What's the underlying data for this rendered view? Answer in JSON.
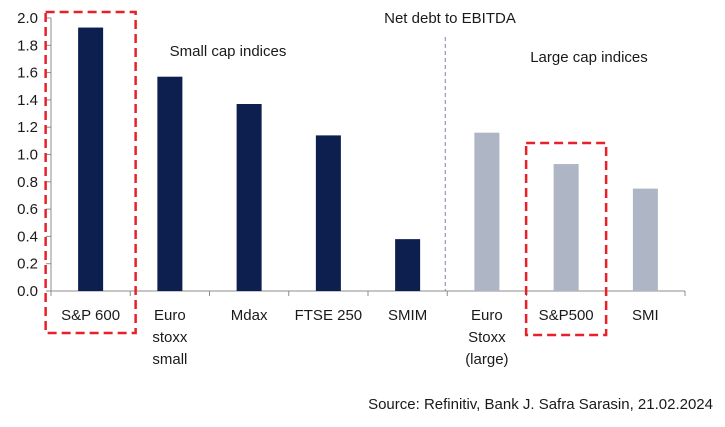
{
  "chart_data": {
    "type": "bar",
    "title": "Net debt to EBITDA",
    "categories": [
      [
        "S&P 600"
      ],
      [
        "Euro",
        "stoxx",
        "small"
      ],
      [
        "Mdax"
      ],
      [
        "FTSE 250"
      ],
      [
        "SMIM"
      ],
      [
        "Euro",
        "Stoxx",
        "(large)"
      ],
      [
        "S&P500"
      ],
      [
        "SMI"
      ]
    ],
    "values": [
      1.93,
      1.57,
      1.37,
      1.14,
      0.38,
      1.16,
      0.93,
      0.75
    ],
    "groups": [
      {
        "name": "Small cap indices",
        "color": "#0c1f4f",
        "indices": [
          0,
          1,
          2,
          3,
          4
        ]
      },
      {
        "name": "Large cap indices",
        "color": "#aeb5c4",
        "indices": [
          5,
          6,
          7
        ]
      }
    ],
    "highlighted": [
      0,
      6
    ],
    "highlight_color": "#e8202a",
    "ylim": [
      0,
      2.0
    ],
    "yticks": [
      "0.0",
      "0.2",
      "0.4",
      "0.6",
      "0.8",
      "1.0",
      "1.2",
      "1.4",
      "1.6",
      "1.8",
      "2.0"
    ],
    "xlabel": "",
    "ylabel": "",
    "axis_color": "#8c8c8c",
    "divider_color": "#7b86a3",
    "source": "Source: Refinitiv, Bank J. Safra Sarasin, 21.02.2024"
  }
}
